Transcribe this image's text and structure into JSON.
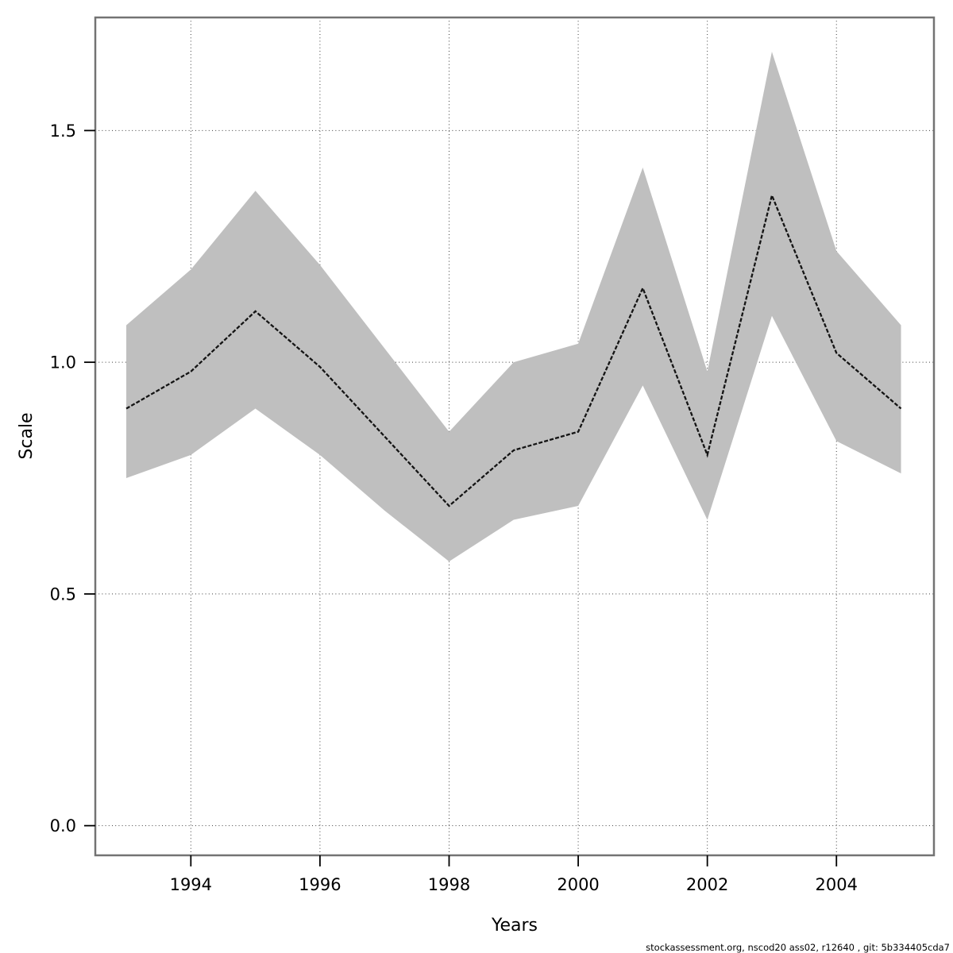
{
  "page": {
    "background": "#ffffff"
  },
  "axes": {
    "x_title": "Years",
    "y_title": "Scale"
  },
  "footer": {
    "credit": "stockassessment.org, nscod20 ass02, r12640 , git: 5b334405cda7"
  },
  "chart_data": {
    "type": "line",
    "title": "",
    "xlabel": "Years",
    "ylabel": "Scale",
    "x": [
      1993,
      1994,
      1995,
      1996,
      1997,
      1998,
      1999,
      2000,
      2001,
      2002,
      2003,
      2004,
      2005
    ],
    "series": [
      {
        "name": "estimate",
        "role": "mean",
        "values": [
          0.9,
          0.98,
          1.11,
          0.99,
          0.84,
          0.69,
          0.81,
          0.85,
          1.16,
          0.8,
          1.36,
          1.02,
          0.9
        ]
      },
      {
        "name": "ci_lower",
        "role": "band_low",
        "values": [
          0.75,
          0.8,
          0.9,
          0.8,
          0.68,
          0.57,
          0.66,
          0.69,
          0.95,
          0.66,
          1.1,
          0.83,
          0.76
        ]
      },
      {
        "name": "ci_upper",
        "role": "band_high",
        "values": [
          1.08,
          1.2,
          1.37,
          1.21,
          1.03,
          0.85,
          1.0,
          1.04,
          1.42,
          0.98,
          1.67,
          1.24,
          1.08
        ]
      }
    ],
    "x_ticks": [
      1994,
      1996,
      1998,
      2000,
      2002,
      2004
    ],
    "x_tick_labels": [
      "1994",
      "1996",
      "1998",
      "2000",
      "2002",
      "2004"
    ],
    "y_ticks": [
      0.0,
      0.5,
      1.0,
      1.5
    ],
    "y_tick_labels": [
      "0.0",
      "0.5",
      "1.0",
      "1.5"
    ],
    "xlim": [
      1992.52,
      2005.51
    ],
    "ylim": [
      -0.064,
      1.744
    ],
    "grid": true,
    "grid_style": "dotted",
    "legend": "none",
    "colors": {
      "band_fill": "#bfbfbf",
      "line": "#141414",
      "frame": "#737373",
      "grid": "#3d3d3d",
      "tick": "#000000"
    },
    "line_style": "dashed"
  }
}
